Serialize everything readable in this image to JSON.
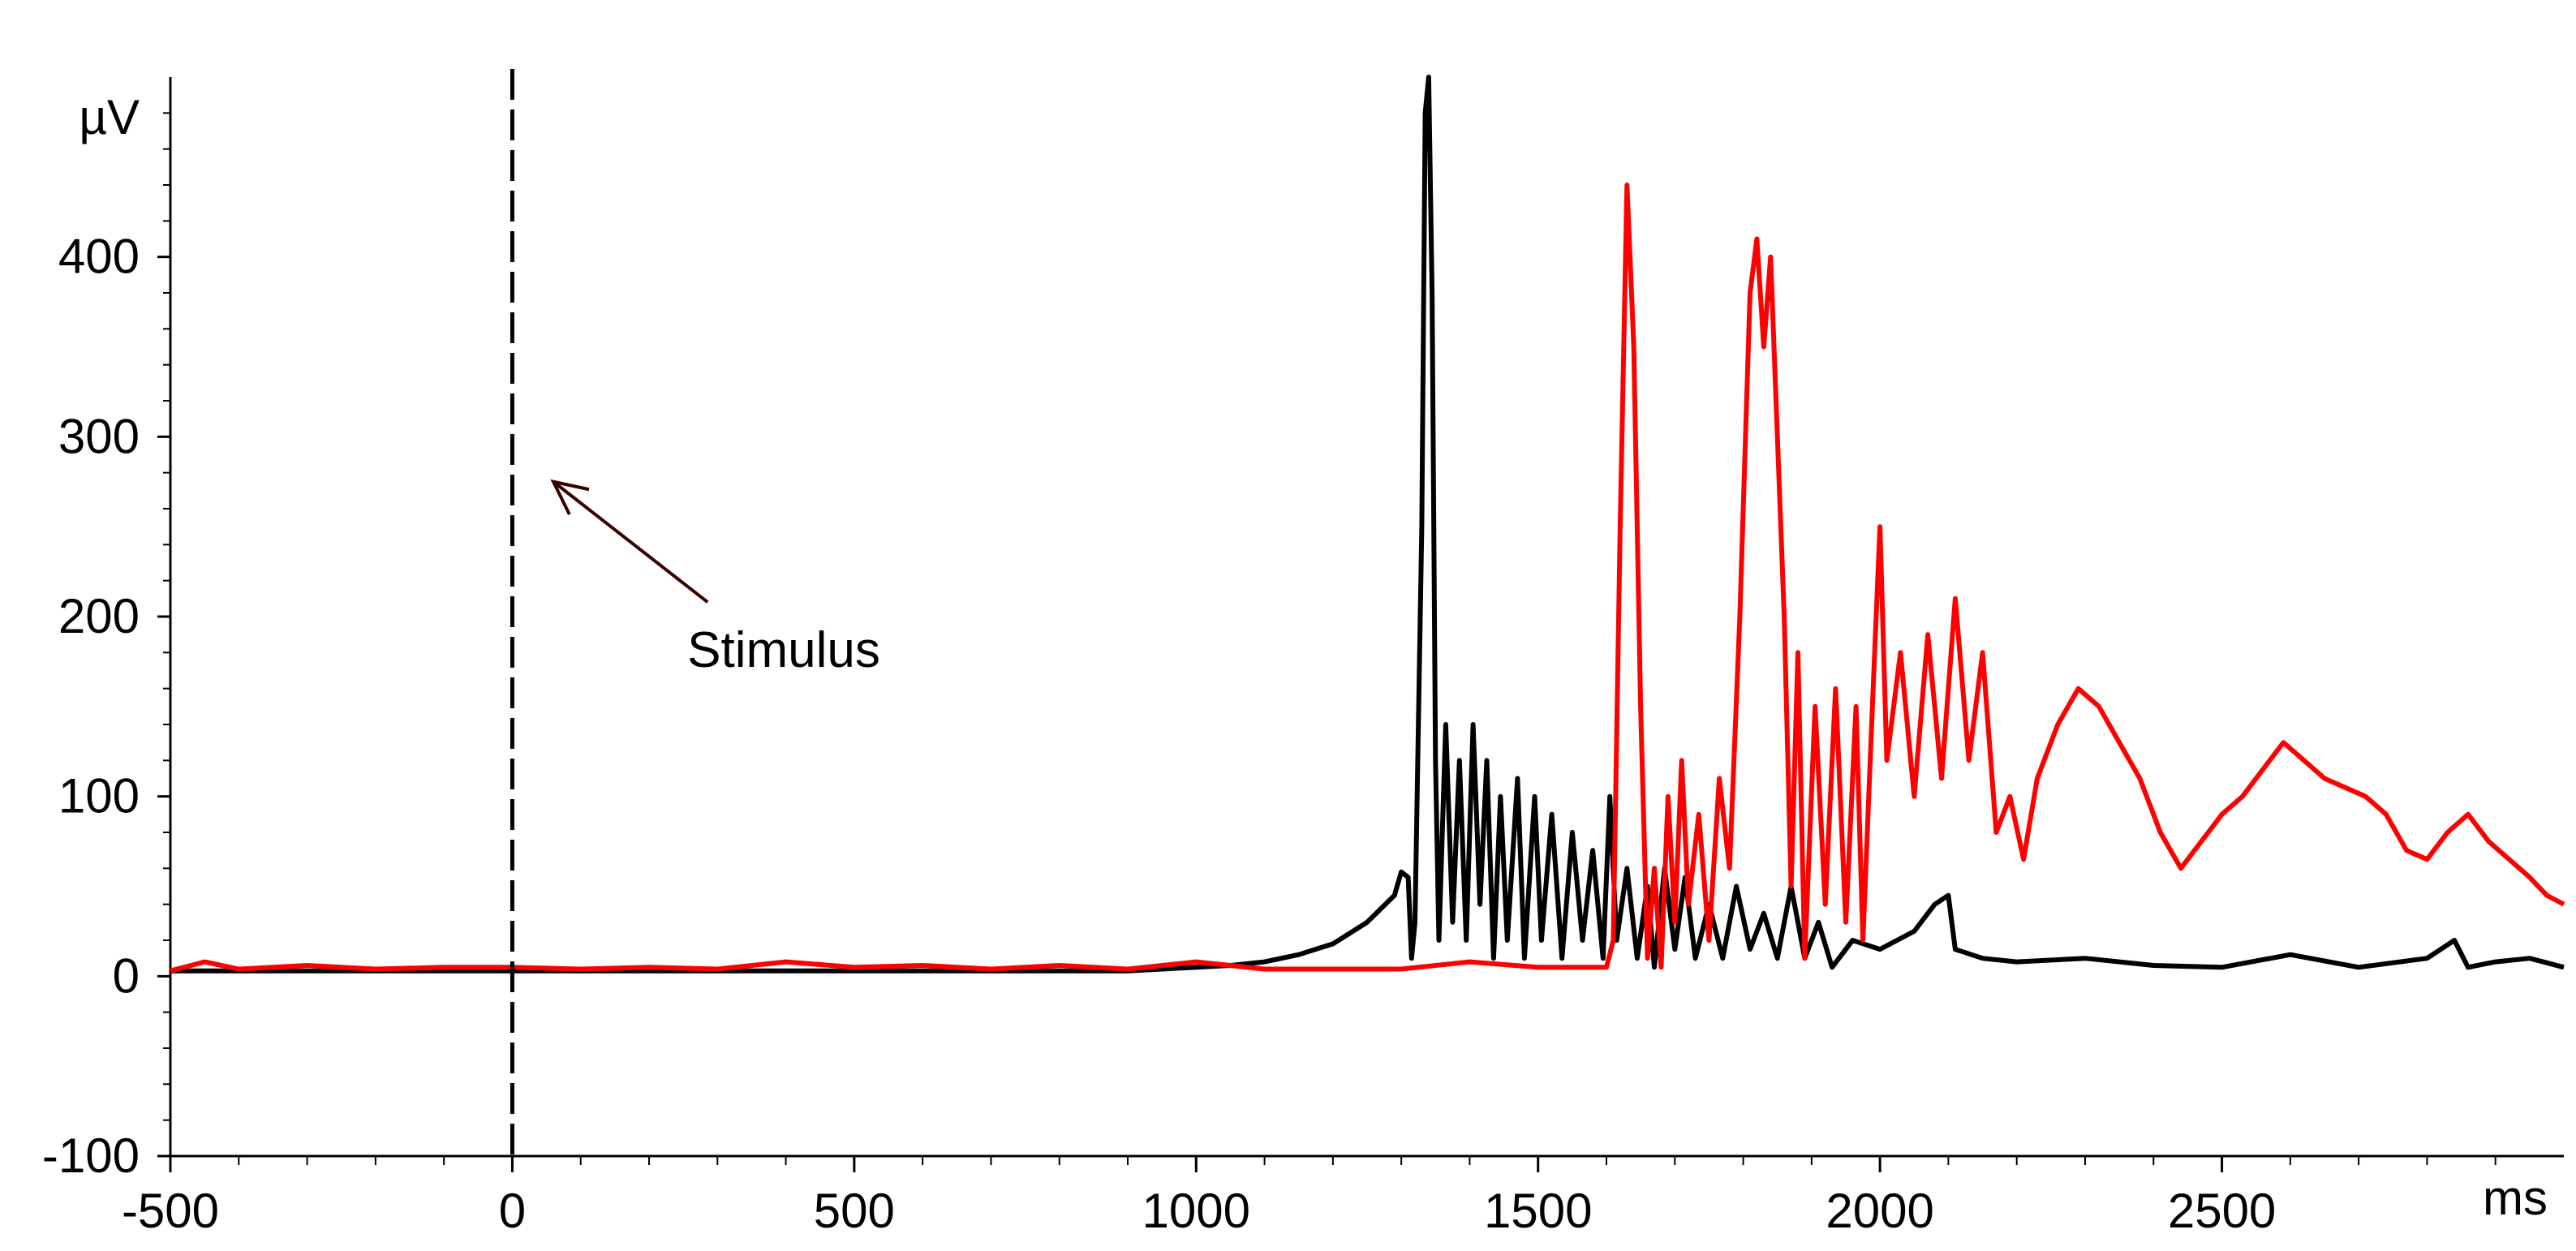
{
  "chart_data": {
    "type": "line",
    "title": "",
    "xlabel": "ms",
    "ylabel": "µV",
    "xlim": [
      -500,
      3000
    ],
    "ylim": [
      -100,
      500
    ],
    "x_ticks": [
      -500,
      0,
      500,
      1000,
      1500,
      2000,
      2500
    ],
    "y_ticks": [
      -100,
      0,
      100,
      200,
      300,
      400
    ],
    "grid": false,
    "legend": "none",
    "annotations": [
      {
        "text": "Stimulus",
        "x": 250,
        "y": 190,
        "points_to": {
          "x": 60,
          "y": 275
        }
      }
    ],
    "stimulus_marker": {
      "x": 0,
      "style": "dashed",
      "color": "#000000"
    },
    "series": [
      {
        "color": "#000000",
        "points": [
          [
            -500,
            3
          ],
          [
            -400,
            3
          ],
          [
            -300,
            3
          ],
          [
            -200,
            3
          ],
          [
            -100,
            3
          ],
          [
            0,
            3
          ],
          [
            100,
            3
          ],
          [
            200,
            3
          ],
          [
            300,
            3
          ],
          [
            400,
            3
          ],
          [
            500,
            3
          ],
          [
            600,
            3
          ],
          [
            700,
            3
          ],
          [
            800,
            3
          ],
          [
            900,
            3
          ],
          [
            1000,
            5
          ],
          [
            1050,
            6
          ],
          [
            1100,
            8
          ],
          [
            1150,
            12
          ],
          [
            1200,
            18
          ],
          [
            1250,
            30
          ],
          [
            1290,
            45
          ],
          [
            1300,
            58
          ],
          [
            1310,
            55
          ],
          [
            1315,
            10
          ],
          [
            1320,
            30
          ],
          [
            1330,
            250
          ],
          [
            1335,
            480
          ],
          [
            1340,
            500
          ],
          [
            1345,
            380
          ],
          [
            1350,
            120
          ],
          [
            1355,
            20
          ],
          [
            1365,
            140
          ],
          [
            1375,
            30
          ],
          [
            1385,
            120
          ],
          [
            1395,
            20
          ],
          [
            1405,
            140
          ],
          [
            1415,
            40
          ],
          [
            1425,
            120
          ],
          [
            1435,
            10
          ],
          [
            1445,
            100
          ],
          [
            1455,
            20
          ],
          [
            1470,
            110
          ],
          [
            1480,
            10
          ],
          [
            1495,
            100
          ],
          [
            1505,
            20
          ],
          [
            1520,
            90
          ],
          [
            1535,
            10
          ],
          [
            1550,
            80
          ],
          [
            1565,
            20
          ],
          [
            1580,
            70
          ],
          [
            1595,
            10
          ],
          [
            1605,
            100
          ],
          [
            1615,
            20
          ],
          [
            1630,
            60
          ],
          [
            1645,
            10
          ],
          [
            1660,
            50
          ],
          [
            1670,
            5
          ],
          [
            1685,
            60
          ],
          [
            1700,
            15
          ],
          [
            1715,
            55
          ],
          [
            1730,
            10
          ],
          [
            1750,
            40
          ],
          [
            1770,
            10
          ],
          [
            1790,
            50
          ],
          [
            1810,
            15
          ],
          [
            1830,
            35
          ],
          [
            1850,
            10
          ],
          [
            1870,
            50
          ],
          [
            1890,
            10
          ],
          [
            1910,
            30
          ],
          [
            1930,
            5
          ],
          [
            1960,
            20
          ],
          [
            2000,
            15
          ],
          [
            2050,
            25
          ],
          [
            2080,
            40
          ],
          [
            2100,
            45
          ],
          [
            2110,
            15
          ],
          [
            2150,
            10
          ],
          [
            2200,
            8
          ],
          [
            2300,
            10
          ],
          [
            2400,
            6
          ],
          [
            2500,
            5
          ],
          [
            2600,
            12
          ],
          [
            2700,
            5
          ],
          [
            2800,
            10
          ],
          [
            2840,
            20
          ],
          [
            2860,
            5
          ],
          [
            2900,
            8
          ],
          [
            2950,
            10
          ],
          [
            3000,
            5
          ]
        ]
      },
      {
        "color": "#ff0000",
        "points": [
          [
            -500,
            3
          ],
          [
            -450,
            8
          ],
          [
            -400,
            4
          ],
          [
            -300,
            6
          ],
          [
            -200,
            4
          ],
          [
            -100,
            5
          ],
          [
            0,
            5
          ],
          [
            100,
            4
          ],
          [
            200,
            5
          ],
          [
            300,
            4
          ],
          [
            400,
            8
          ],
          [
            500,
            5
          ],
          [
            600,
            6
          ],
          [
            700,
            4
          ],
          [
            800,
            6
          ],
          [
            900,
            4
          ],
          [
            1000,
            8
          ],
          [
            1100,
            4
          ],
          [
            1200,
            4
          ],
          [
            1300,
            4
          ],
          [
            1400,
            8
          ],
          [
            1500,
            5
          ],
          [
            1600,
            5
          ],
          [
            1610,
            20
          ],
          [
            1620,
            250
          ],
          [
            1630,
            440
          ],
          [
            1640,
            350
          ],
          [
            1650,
            150
          ],
          [
            1660,
            10
          ],
          [
            1670,
            60
          ],
          [
            1680,
            5
          ],
          [
            1690,
            100
          ],
          [
            1700,
            30
          ],
          [
            1710,
            120
          ],
          [
            1720,
            40
          ],
          [
            1735,
            90
          ],
          [
            1750,
            20
          ],
          [
            1765,
            110
          ],
          [
            1780,
            60
          ],
          [
            1795,
            200
          ],
          [
            1810,
            380
          ],
          [
            1820,
            410
          ],
          [
            1830,
            350
          ],
          [
            1840,
            400
          ],
          [
            1850,
            300
          ],
          [
            1860,
            200
          ],
          [
            1870,
            50
          ],
          [
            1880,
            180
          ],
          [
            1890,
            10
          ],
          [
            1905,
            150
          ],
          [
            1920,
            40
          ],
          [
            1935,
            160
          ],
          [
            1950,
            30
          ],
          [
            1965,
            150
          ],
          [
            1975,
            20
          ],
          [
            1990,
            160
          ],
          [
            2000,
            250
          ],
          [
            2010,
            120
          ],
          [
            2030,
            180
          ],
          [
            2050,
            100
          ],
          [
            2070,
            190
          ],
          [
            2090,
            110
          ],
          [
            2110,
            210
          ],
          [
            2130,
            120
          ],
          [
            2150,
            180
          ],
          [
            2170,
            80
          ],
          [
            2190,
            100
          ],
          [
            2210,
            65
          ],
          [
            2230,
            110
          ],
          [
            2260,
            140
          ],
          [
            2290,
            160
          ],
          [
            2320,
            150
          ],
          [
            2350,
            130
          ],
          [
            2380,
            110
          ],
          [
            2410,
            80
          ],
          [
            2440,
            60
          ],
          [
            2470,
            75
          ],
          [
            2500,
            90
          ],
          [
            2530,
            100
          ],
          [
            2560,
            115
          ],
          [
            2590,
            130
          ],
          [
            2620,
            120
          ],
          [
            2650,
            110
          ],
          [
            2680,
            105
          ],
          [
            2710,
            100
          ],
          [
            2740,
            90
          ],
          [
            2770,
            70
          ],
          [
            2800,
            65
          ],
          [
            2830,
            80
          ],
          [
            2860,
            90
          ],
          [
            2890,
            75
          ],
          [
            2920,
            65
          ],
          [
            2950,
            55
          ],
          [
            2975,
            45
          ],
          [
            3000,
            40
          ]
        ]
      }
    ]
  }
}
